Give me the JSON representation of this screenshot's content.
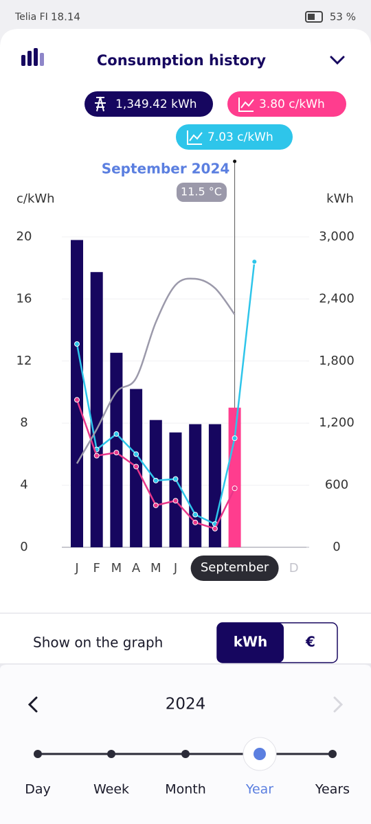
{
  "status_bar": {
    "carrier": "Telia FI",
    "time": "18.14",
    "battery": "53 %"
  },
  "header": {
    "title": "Consumption history"
  },
  "readouts": {
    "consumption": "1,349.42 kWh",
    "price": "3.80 c/kWh",
    "spot": "7.03 c/kWh"
  },
  "chart_data": {
    "type": "combo",
    "title": "September 2024",
    "annotation": "11.5 °C",
    "ylabel": "c/kWh",
    "y2label": "kWh",
    "categories": [
      "J",
      "F",
      "M",
      "A",
      "M",
      "J",
      null,
      null,
      "September",
      null,
      null,
      "D"
    ],
    "selected_index": 8,
    "ylim": [
      0,
      20
    ],
    "yticks": [
      0,
      4,
      8,
      12,
      16,
      20
    ],
    "y2lim": [
      0,
      3000
    ],
    "y2ticks": [
      0,
      600,
      {
        "value": 1200,
        "label": "1,200"
      },
      {
        "value": 1800,
        "label": "1,800"
      },
      {
        "value": 2400,
        "label": "2,400"
      },
      {
        "value": 3000,
        "label": "3,000"
      }
    ],
    "grid": true,
    "series": [
      {
        "type": "bar",
        "axis": "y2",
        "color": "#16065f",
        "highlight_color": "#ff3d8e",
        "values": [
          2970,
          2660,
          1880,
          1530,
          1230,
          1110,
          1190,
          1190,
          1349.42,
          null,
          null,
          null
        ]
      },
      {
        "type": "line",
        "color": "#2ec5ea",
        "markers": true,
        "values": [
          13.1,
          6.3,
          7.3,
          6.0,
          4.3,
          4.4,
          2.1,
          1.5,
          7.03,
          18.4,
          null,
          null
        ]
      },
      {
        "type": "line",
        "color": "#e8378a",
        "markers": true,
        "values": [
          9.5,
          5.9,
          6.1,
          5.2,
          2.7,
          3.0,
          1.6,
          1.2,
          3.8,
          null,
          null,
          null
        ]
      },
      {
        "type": "line",
        "color": "#9b99aa",
        "markers": false,
        "smooth": true,
        "values": [
          5.4,
          7.6,
          10.0,
          10.9,
          14.5,
          16.9,
          17.3,
          16.7,
          15.0,
          null,
          null,
          null
        ]
      }
    ]
  },
  "toggle": {
    "label": "Show on the graph",
    "options": [
      "kWh",
      "€"
    ],
    "selected": 0
  },
  "period": {
    "year": "2024",
    "options": [
      "Day",
      "Week",
      "Month",
      "Year",
      "Years"
    ],
    "selected": 3
  }
}
